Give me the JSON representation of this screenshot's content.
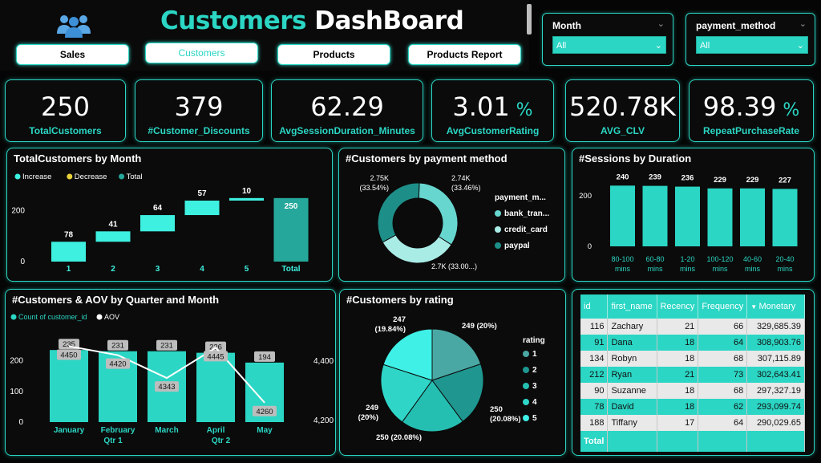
{
  "header": {
    "title_part1": "Customers",
    "title_part2": "DashBoard",
    "icon": "people-icon",
    "nav": [
      {
        "label": "Sales",
        "active": false
      },
      {
        "label": "Customers",
        "active": true
      },
      {
        "label": "Products",
        "active": false
      },
      {
        "label": "Products Report",
        "active": false
      }
    ]
  },
  "slicers": {
    "month": {
      "label": "Month",
      "value": "All"
    },
    "payment": {
      "label": "payment_method",
      "value": "All"
    }
  },
  "kpis": [
    {
      "value": "250",
      "suffix": "",
      "caption": "TotalCustomers"
    },
    {
      "value": "379",
      "suffix": "",
      "caption": "#Customer_Discounts"
    },
    {
      "value": "62.29",
      "suffix": "",
      "caption": "AvgSessionDuration_Minutes"
    },
    {
      "value": "3.01",
      "suffix": "%",
      "caption": "AvgCustomerRating"
    },
    {
      "value": "520.78K",
      "suffix": "",
      "caption": "AVG_CLV"
    },
    {
      "value": "98.39",
      "suffix": "%",
      "caption": "RepeatPurchaseRate"
    }
  ],
  "colors": {
    "accent": "#2bd6c4",
    "increase": "#3ef0e0",
    "decrease": "#e8d23a",
    "total": "#25a89b"
  },
  "chart_data": [
    {
      "id": "waterfall",
      "type": "bar",
      "title": "TotalCustomers by Month",
      "legend": [
        "Increase",
        "Decrease",
        "Total"
      ],
      "categories": [
        "1",
        "2",
        "3",
        "4",
        "5",
        "Total"
      ],
      "values": [
        78,
        41,
        64,
        57,
        10,
        250
      ],
      "y_ticks": [
        "0",
        "200"
      ],
      "ylim": [
        0,
        300
      ]
    },
    {
      "id": "donut",
      "type": "pie",
      "title": "#Customers by payment method",
      "legend_title": "payment_m...",
      "series": [
        {
          "name": "bank_tran...",
          "value": 2740,
          "label": "2.74K",
          "pct": "(33.46%)",
          "color": "#67d6cf"
        },
        {
          "name": "credit_card",
          "value": 2700,
          "label": "2.7K (33.00...)",
          "pct": "",
          "color": "#a9ece6"
        },
        {
          "name": "paypal",
          "value": 2750,
          "label": "2.75K",
          "pct": "(33.54%)",
          "color": "#1e8f88"
        }
      ]
    },
    {
      "id": "sessions",
      "type": "bar",
      "title": "#Sessions by Duration",
      "categories": [
        "80-100 mins",
        "60-80 mins",
        "1-20 mins",
        "100-120 mins",
        "40-60 mins",
        "20-40 mins"
      ],
      "values": [
        240,
        239,
        236,
        229,
        229,
        227
      ],
      "y_ticks": [
        "0",
        "200"
      ],
      "ylim": [
        0,
        260
      ]
    },
    {
      "id": "combo",
      "type": "bar",
      "title": "#Customers & AOV by Quarter and Month",
      "legend": [
        "Count of customer_id",
        "AOV"
      ],
      "categories": [
        "January",
        "February",
        "March",
        "April",
        "May"
      ],
      "quarters": [
        "Qtr 1",
        "Qtr 2"
      ],
      "series": [
        {
          "name": "Count of customer_id",
          "values": [
            235,
            231,
            231,
            226,
            194
          ]
        },
        {
          "name": "AOV",
          "values": [
            4450,
            4420,
            4343,
            4445,
            4260
          ]
        }
      ],
      "y_ticks_left": [
        "0",
        "100",
        "200"
      ],
      "y_ticks_right": [
        "4,200",
        "4,400"
      ],
      "ylim": [
        0,
        280
      ],
      "y2lim": [
        4200,
        4500
      ]
    },
    {
      "id": "rating",
      "type": "pie",
      "title": "#Customers by rating",
      "legend_title": "rating",
      "series": [
        {
          "name": "1",
          "value": 247,
          "label": "247",
          "pct": "(19.84%)",
          "color": "#4aa8a4"
        },
        {
          "name": "2",
          "value": 249,
          "label": "249 (20%)",
          "pct": "",
          "color": "#1f9690"
        },
        {
          "name": "3",
          "value": 250,
          "label": "250",
          "pct": "(20.08%)",
          "color": "#25bfb2"
        },
        {
          "name": "4",
          "value": 250,
          "label": "250 (20.08%)",
          "pct": "",
          "color": "#2fd6c8"
        },
        {
          "name": "5",
          "value": 249,
          "label": "249",
          "pct": "(20%)",
          "color": "#3ff0e6"
        }
      ]
    }
  ],
  "table": {
    "columns": [
      "id",
      "first_name",
      "Recency",
      "Frequency",
      "Monetary"
    ],
    "sort_column": "Monetary",
    "rows": [
      [
        "116",
        "Zachary",
        "21",
        "66",
        "329,685.39"
      ],
      [
        "91",
        "Dana",
        "18",
        "64",
        "308,903.76"
      ],
      [
        "134",
        "Robyn",
        "18",
        "68",
        "307,115.89"
      ],
      [
        "212",
        "Ryan",
        "21",
        "73",
        "302,643.41"
      ],
      [
        "90",
        "Suzanne",
        "18",
        "68",
        "297,327.19"
      ],
      [
        "78",
        "David",
        "18",
        "62",
        "293,099.74"
      ],
      [
        "188",
        "Tiffany",
        "17",
        "64",
        "290,029.65"
      ]
    ],
    "total_label": "Total"
  }
}
